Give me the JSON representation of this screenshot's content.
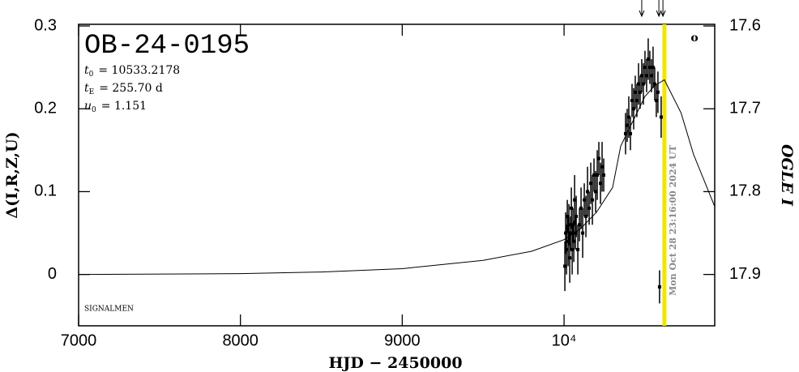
{
  "chart_data": {
    "type": "scatter",
    "title": "OB-24-0195",
    "parameters": [
      {
        "symbol": "t",
        "sub": "0",
        "text": "= 10533.2178"
      },
      {
        "symbol": "t",
        "sub": "E",
        "text": "= 255.70 d"
      },
      {
        "symbol": "u",
        "sub": "0",
        "text": "= 1.151"
      }
    ],
    "source_note": "SIGNALMEN",
    "corner_mark": "o",
    "x_label": "HJD − 2450000",
    "y_label": "Δ(I,R,Z,U)",
    "y2_label": "OGLE I",
    "xlim": [
      7000,
      10931
    ],
    "xticks": [
      7000,
      8000,
      9000,
      {
        "value": 10000,
        "label": "10⁴"
      }
    ],
    "ylim": [
      -0.062,
      0.302
    ],
    "yticks": [
      0,
      0.1,
      0.2,
      0.3
    ],
    "y2lim": [
      17.962,
      17.598
    ],
    "y2ticks": [
      17.6,
      17.7,
      17.8,
      17.9
    ],
    "vline": {
      "x": 10620,
      "label": "Mon Oct 28 23:16:00 2024 UT",
      "color": "#f2e600"
    },
    "arrows_x": [
      10480,
      10586,
      10611
    ],
    "model": {
      "color": "#000000",
      "x": [
        7000,
        8000,
        8500,
        9000,
        9500,
        9800,
        10000,
        10100,
        10200,
        10300,
        10350,
        10400,
        10450,
        10500,
        10560,
        10620,
        10723,
        10800,
        10931
      ],
      "values": [
        0,
        0.001,
        0.003,
        0.007,
        0.017,
        0.028,
        0.042,
        0.055,
        0.075,
        0.105,
        0.155,
        0.175,
        0.195,
        0.215,
        0.228,
        0.235,
        0.195,
        0.145,
        0.082
      ]
    },
    "series": [
      {
        "color": "#000000",
        "x": [
          10005,
          10010,
          10015,
          10020,
          10025,
          10030,
          10035,
          10040,
          10045,
          10050,
          10055,
          10060,
          10065,
          10070,
          10075,
          10085,
          10095,
          10105,
          10115,
          10125,
          10135,
          10145,
          10155,
          10165,
          10175,
          10185,
          10195,
          10205,
          10215,
          10225,
          10235,
          10245,
          10380,
          10390,
          10400,
          10410,
          10420,
          10430,
          10440,
          10450,
          10460,
          10470,
          10480,
          10490,
          10500,
          10510,
          10520,
          10530,
          10540,
          10550,
          10560,
          10570,
          10580,
          10590,
          10600
        ],
        "values": [
          0.01,
          0.05,
          0.03,
          0.07,
          0.04,
          0.06,
          0.02,
          0.05,
          0.08,
          0.03,
          0.06,
          0.04,
          0.09,
          0.05,
          0.07,
          0.03,
          0.06,
          0.08,
          0.05,
          0.09,
          0.07,
          0.1,
          0.08,
          0.11,
          0.09,
          0.12,
          0.1,
          0.12,
          0.14,
          0.11,
          0.13,
          0.12,
          0.17,
          0.18,
          0.19,
          0.17,
          0.21,
          0.2,
          0.22,
          0.21,
          0.23,
          0.22,
          0.24,
          0.23,
          0.25,
          0.24,
          0.26,
          0.25,
          0.24,
          0.25,
          0.23,
          0.21,
          0.22,
          -0.015,
          0.19
        ],
        "errors": [
          0.03,
          0.025,
          0.03,
          0.02,
          0.03,
          0.025,
          0.03,
          0.02,
          0.025,
          0.03,
          0.02,
          0.025,
          0.03,
          0.02,
          0.025,
          0.03,
          0.02,
          0.025,
          0.03,
          0.02,
          0.025,
          0.03,
          0.02,
          0.025,
          0.03,
          0.02,
          0.025,
          0.03,
          0.02,
          0.025,
          0.03,
          0.02,
          0.025,
          0.02,
          0.025,
          0.02,
          0.02,
          0.025,
          0.02,
          0.02,
          0.025,
          0.02,
          0.02,
          0.025,
          0.02,
          0.02,
          0.025,
          0.02,
          0.02,
          0.025,
          0.02,
          0.02,
          0.025,
          0.02,
          0.025
        ]
      }
    ]
  }
}
